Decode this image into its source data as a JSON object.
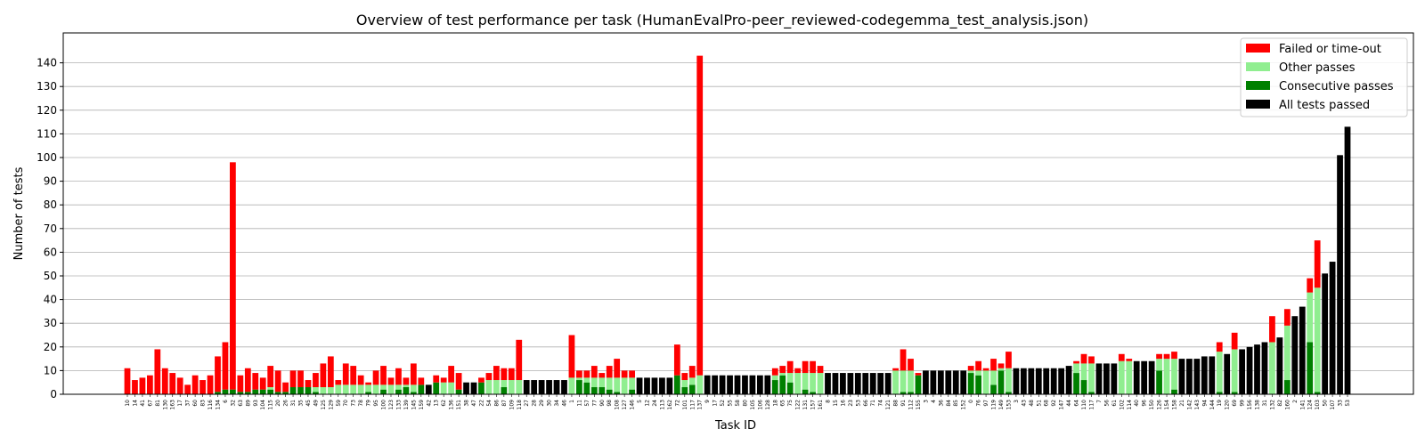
{
  "chart_data": {
    "type": "bar",
    "stacked": true,
    "title": "Overview of test performance per task (HumanEvalPro-peer_reviewed-codegemma_test_analysis.json)",
    "xlabel": "Task ID",
    "ylabel": "Number of tests",
    "ylim": [
      0,
      150
    ],
    "yticks": [
      0,
      10,
      20,
      30,
      40,
      50,
      60,
      70,
      80,
      90,
      100,
      110,
      120,
      130,
      140
    ],
    "grid": "horizontal",
    "legend_position": "top-right",
    "categories": [
      "10",
      "14",
      "41",
      "67",
      "81",
      "130",
      "163",
      "17",
      "37",
      "60",
      "83",
      "116",
      "134",
      "6",
      "32",
      "63",
      "89",
      "93",
      "104",
      "115",
      "20",
      "26",
      "31",
      "35",
      "45",
      "49",
      "125",
      "129",
      "59",
      "70",
      "73",
      "78",
      "79",
      "95",
      "100",
      "123",
      "133",
      "139",
      "145",
      "159",
      "42",
      "13",
      "62",
      "136",
      "151",
      "38",
      "47",
      "22",
      "54",
      "86",
      "87",
      "109",
      "118",
      "27",
      "28",
      "29",
      "30",
      "34",
      "46",
      "1",
      "11",
      "57",
      "77",
      "90",
      "98",
      "108",
      "127",
      "146",
      "5",
      "12",
      "24",
      "113",
      "162",
      "72",
      "101",
      "117",
      "137",
      "9",
      "17",
      "52",
      "55",
      "58",
      "80",
      "105",
      "106",
      "128",
      "18",
      "65",
      "75",
      "122",
      "131",
      "157",
      "161",
      "8",
      "15",
      "16",
      "23",
      "53",
      "66",
      "71",
      "74",
      "121",
      "88",
      "91",
      "112",
      "155",
      "3",
      "4",
      "36",
      "84",
      "85",
      "152",
      "0",
      "76",
      "97",
      "119",
      "149",
      "153",
      "3",
      "43",
      "48",
      "51",
      "68",
      "92",
      "147",
      "44",
      "64",
      "110",
      "117",
      "7",
      "56",
      "61",
      "102",
      "114",
      "40",
      "96",
      "150",
      "126",
      "154",
      "158",
      "21",
      "142",
      "143",
      "94",
      "144",
      "19",
      "120",
      "69",
      "99",
      "156",
      "138",
      "31",
      "132",
      "82",
      "160",
      "2",
      "141",
      "124",
      "103",
      "50",
      "107",
      "33",
      "53"
    ],
    "series": [
      {
        "name": "All tests passed",
        "color": "#000000",
        "values": [
          0,
          0,
          0,
          0,
          0,
          0,
          0,
          0,
          0,
          0,
          0,
          0,
          0,
          0,
          0,
          0,
          0,
          0,
          0,
          0,
          0,
          0,
          0,
          0,
          0,
          0,
          0,
          0,
          0,
          0,
          0,
          0,
          0,
          0,
          0,
          0,
          0,
          0,
          0,
          0,
          4,
          0,
          0,
          0,
          0,
          5,
          5,
          0,
          0,
          0,
          0,
          0,
          0,
          6,
          6,
          6,
          6,
          6,
          6,
          0,
          0,
          0,
          0,
          0,
          0,
          0,
          0,
          0,
          7,
          7,
          7,
          7,
          7,
          0,
          0,
          0,
          0,
          8,
          8,
          8,
          8,
          8,
          8,
          8,
          8,
          8,
          0,
          0,
          0,
          0,
          0,
          0,
          0,
          9,
          9,
          9,
          9,
          9,
          9,
          9,
          9,
          9,
          0,
          0,
          0,
          0,
          10,
          10,
          10,
          10,
          10,
          10,
          0,
          0,
          0,
          0,
          0,
          0,
          11,
          11,
          11,
          11,
          11,
          11,
          11,
          12,
          0,
          0,
          0,
          13,
          13,
          13,
          0,
          0,
          14,
          14,
          14,
          0,
          0,
          0,
          15,
          15,
          15,
          16,
          16,
          0,
          17,
          0,
          19,
          20,
          21,
          22,
          0,
          24,
          0,
          33,
          37,
          0,
          0,
          51,
          56,
          101,
          113
        ]
      },
      {
        "name": "Consecutive passes",
        "color": "#008000",
        "values": [
          0,
          0,
          0,
          0,
          0,
          0,
          0,
          0,
          0,
          0,
          0,
          0,
          1,
          2,
          2,
          1,
          1,
          2,
          2,
          2,
          1,
          1,
          3,
          3,
          3,
          1,
          0,
          0,
          0,
          0,
          0,
          0,
          1,
          0,
          2,
          0,
          2,
          3,
          1,
          4,
          0,
          5,
          0,
          0,
          2,
          0,
          0,
          5,
          0,
          0,
          3,
          0,
          0,
          0,
          0,
          0,
          0,
          0,
          0,
          0,
          6,
          5,
          3,
          3,
          2,
          1,
          0,
          2,
          0,
          0,
          0,
          0,
          0,
          8,
          3,
          4,
          0,
          0,
          0,
          0,
          0,
          0,
          0,
          0,
          0,
          0,
          6,
          8,
          5,
          0,
          2,
          1,
          0,
          0,
          0,
          0,
          0,
          0,
          0,
          0,
          0,
          0,
          0,
          1,
          1,
          8,
          0,
          0,
          0,
          0,
          0,
          0,
          9,
          8,
          0,
          4,
          10,
          1,
          0,
          0,
          0,
          0,
          0,
          0,
          0,
          0,
          9,
          6,
          1,
          0,
          0,
          0,
          0,
          0,
          0,
          0,
          0,
          10,
          0,
          2,
          0,
          0,
          0,
          0,
          0,
          1,
          0,
          1,
          0,
          0,
          0,
          0,
          0,
          0,
          6,
          0,
          0,
          22,
          1,
          0,
          0,
          0,
          0
        ]
      },
      {
        "name": "Other passes",
        "color": "#90ee90",
        "values": [
          0,
          0,
          0,
          0,
          0,
          0,
          0,
          0,
          0,
          0,
          0,
          0,
          0,
          0,
          0,
          0,
          0,
          0,
          0,
          1,
          0,
          0,
          0,
          0,
          0,
          2,
          3,
          3,
          4,
          4,
          4,
          4,
          3,
          4,
          2,
          4,
          2,
          1,
          3,
          0,
          0,
          0,
          5,
          5,
          0,
          0,
          0,
          0,
          6,
          6,
          3,
          6,
          6,
          0,
          0,
          0,
          0,
          0,
          0,
          7,
          1,
          2,
          4,
          4,
          5,
          6,
          7,
          5,
          0,
          0,
          0,
          0,
          0,
          0,
          3,
          3,
          8,
          0,
          0,
          0,
          0,
          0,
          0,
          0,
          0,
          0,
          2,
          1,
          4,
          9,
          7,
          8,
          9,
          0,
          0,
          0,
          0,
          0,
          0,
          0,
          0,
          0,
          10,
          9,
          9,
          0,
          0,
          0,
          0,
          0,
          0,
          0,
          1,
          2,
          10,
          6,
          1,
          10,
          0,
          0,
          0,
          0,
          0,
          0,
          0,
          0,
          4,
          7,
          12,
          0,
          0,
          0,
          14,
          14,
          0,
          0,
          0,
          5,
          15,
          13,
          0,
          0,
          0,
          0,
          0,
          17,
          0,
          18,
          0,
          0,
          0,
          0,
          22,
          0,
          23,
          0,
          0,
          21,
          44,
          0,
          0,
          0,
          0
        ]
      },
      {
        "name": "Failed or time-out",
        "color": "#ff0000",
        "values": [
          11,
          6,
          7,
          8,
          19,
          11,
          9,
          7,
          4,
          8,
          6,
          8,
          15,
          20,
          96,
          7,
          10,
          7,
          5,
          9,
          9,
          4,
          7,
          7,
          3,
          6,
          10,
          13,
          2,
          9,
          8,
          4,
          1,
          6,
          8,
          3,
          7,
          3,
          9,
          3,
          0,
          3,
          2,
          7,
          7,
          0,
          0,
          2,
          3,
          6,
          5,
          5,
          17,
          0,
          0,
          0,
          0,
          0,
          0,
          18,
          3,
          3,
          5,
          2,
          5,
          8,
          3,
          3,
          0,
          0,
          0,
          0,
          0,
          13,
          3,
          5,
          135,
          0,
          0,
          0,
          0,
          0,
          0,
          0,
          0,
          0,
          3,
          3,
          5,
          2,
          5,
          5,
          3,
          0,
          0,
          0,
          0,
          0,
          0,
          0,
          0,
          0,
          1,
          9,
          5,
          1,
          0,
          0,
          0,
          0,
          0,
          0,
          2,
          4,
          1,
          5,
          2,
          7,
          0,
          0,
          0,
          0,
          0,
          0,
          0,
          0,
          1,
          4,
          3,
          0,
          0,
          0,
          3,
          1,
          0,
          0,
          0,
          2,
          2,
          3,
          0,
          0,
          0,
          0,
          0,
          4,
          0,
          7,
          0,
          0,
          0,
          0,
          11,
          0,
          7,
          0,
          0,
          6,
          20,
          0,
          0,
          0,
          0
        ]
      }
    ],
    "legend_order": [
      "Failed or time-out",
      "Other passes",
      "Consecutive passes",
      "All tests passed"
    ]
  }
}
